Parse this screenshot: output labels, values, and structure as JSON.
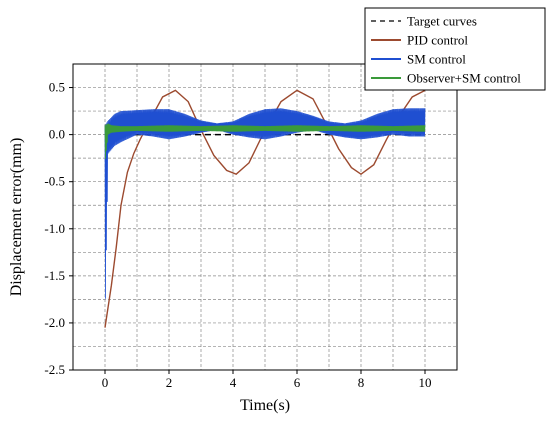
{
  "chart_data": {
    "type": "line",
    "xlabel": "Time(s)",
    "ylabel": "Displacement error(mm)",
    "xlim": [
      -1,
      11
    ],
    "ylim": [
      -2.5,
      0.75
    ],
    "xticks": [
      0,
      2,
      4,
      6,
      8,
      10
    ],
    "yticks": [
      0.5,
      0.0,
      -0.5,
      -1.0,
      -1.5,
      -2.0,
      -2.5
    ],
    "xtick_labels": [
      "0",
      "2",
      "4",
      "6",
      "8",
      "10"
    ],
    "ytick_labels": [
      "0.5",
      "0.0",
      "-0.5",
      "-1.0",
      "-1.5",
      "-2.0",
      "-2.5"
    ],
    "grid": true,
    "legend_position": "top-right",
    "series": [
      {
        "name": "Target curves",
        "color": "#000000",
        "dash": true,
        "x": [
          0,
          10
        ],
        "y": [
          0,
          0
        ]
      },
      {
        "name": "PID control",
        "color": "#9c4a2f",
        "dash": false,
        "x": [
          0.0,
          0.2,
          0.35,
          0.5,
          0.7,
          0.9,
          1.1,
          1.4,
          1.8,
          2.2,
          2.6,
          3.0,
          3.4,
          3.8,
          4.1,
          4.5,
          5.0,
          5.5,
          6.0,
          6.5,
          6.9,
          7.3,
          7.7,
          8.0,
          8.4,
          8.8,
          9.2,
          9.6,
          10.0
        ],
        "y": [
          -2.05,
          -1.6,
          -1.2,
          -0.75,
          -0.4,
          -0.2,
          -0.05,
          0.15,
          0.4,
          0.47,
          0.35,
          0.05,
          -0.22,
          -0.38,
          -0.42,
          -0.3,
          0.05,
          0.35,
          0.47,
          0.38,
          0.12,
          -0.15,
          -0.35,
          -0.42,
          -0.32,
          -0.05,
          0.2,
          0.4,
          0.47
        ]
      },
      {
        "name": "SM control",
        "color": "#1f4fd1",
        "dash": false,
        "envelope": {
          "x": [
            0,
            0.1,
            0.3,
            0.5,
            1.0,
            1.5,
            2.0,
            2.5,
            3.0,
            3.5,
            4.0,
            4.5,
            5.0,
            5.5,
            6.0,
            6.5,
            7.0,
            7.5,
            8.0,
            8.5,
            9.0,
            9.5,
            10.0
          ],
          "upper": [
            0.1,
            0.15,
            0.22,
            0.25,
            0.26,
            0.27,
            0.27,
            0.22,
            0.15,
            0.12,
            0.14,
            0.22,
            0.27,
            0.28,
            0.25,
            0.2,
            0.14,
            0.12,
            0.15,
            0.22,
            0.27,
            0.28,
            0.28
          ],
          "lower": [
            -2.0,
            -0.2,
            -0.12,
            -0.08,
            0.0,
            -0.02,
            -0.05,
            -0.02,
            0.02,
            0.05,
            0.0,
            -0.03,
            -0.05,
            -0.02,
            0.02,
            0.05,
            0.0,
            -0.03,
            -0.05,
            -0.03,
            0.0,
            -0.02,
            -0.02
          ]
        }
      },
      {
        "name": "Observer+SM control",
        "color": "#3a9a3a",
        "dash": false,
        "envelope": {
          "x": [
            0,
            0.1,
            0.2,
            0.5,
            1.0,
            2.0,
            3.0,
            4.0,
            5.0,
            6.0,
            7.0,
            8.0,
            9.0,
            10.0
          ],
          "upper": [
            0.1,
            0.12,
            0.1,
            0.09,
            0.09,
            0.1,
            0.09,
            0.1,
            0.09,
            0.1,
            0.09,
            0.1,
            0.09,
            0.1
          ],
          "lower": [
            -0.3,
            0.0,
            0.02,
            0.03,
            0.04,
            0.03,
            0.04,
            0.03,
            0.04,
            0.03,
            0.04,
            0.03,
            0.04,
            0.03
          ]
        }
      }
    ]
  }
}
